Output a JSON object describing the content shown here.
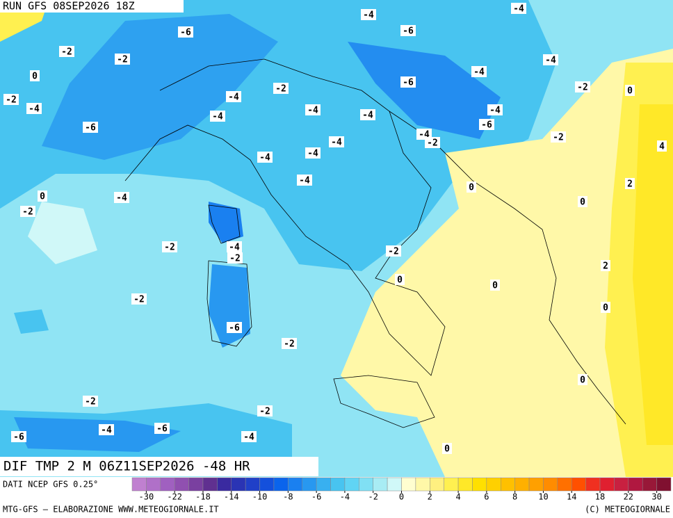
{
  "header": {
    "run": "RUN GFS 08SEP2026 18Z"
  },
  "title": "DIF TMP 2 M 06Z11SEP2026 -48 HR",
  "source": "DATI NCEP GFS 0.25°",
  "footer": {
    "left": "MTG-GFS — ELABORAZIONE WWW.METEOGIORNALE.IT",
    "right": "(C) METEOGIORNALE"
  },
  "contour_labels": [
    "-4",
    "-4",
    "-6",
    "-6",
    "-2",
    "-2",
    "-4",
    "0",
    "-4",
    "-6",
    "-2",
    "-2",
    "0",
    "-2",
    "-4",
    "-4",
    "-4",
    "-4",
    "-4",
    "-4",
    "-6",
    "-6",
    "-4",
    "-2",
    "-2",
    "-4",
    "-4",
    "-4",
    "4",
    "-4",
    "0",
    "2",
    "0",
    "-4",
    "0",
    "-2",
    "-2",
    "-4",
    "-2",
    "-2",
    "2",
    "0",
    "0",
    "-2",
    "0",
    "-6",
    "-2",
    "0",
    "-2",
    "-2",
    "-4",
    "-6",
    "-6",
    "-4",
    "0"
  ],
  "colorbar": {
    "ticks": [
      -30,
      -22,
      -18,
      -14,
      -10,
      -8,
      -6,
      -4,
      -2,
      0,
      2,
      4,
      6,
      8,
      10,
      14,
      18,
      22,
      30
    ],
    "colors": [
      "#c080d0",
      "#b070c8",
      "#a060c0",
      "#9050b0",
      "#7a40a0",
      "#603090",
      "#3a2aa0",
      "#2a34b4",
      "#2040c8",
      "#1450dc",
      "#0a64ec",
      "#1a80f0",
      "#2898f0",
      "#38b0f0",
      "#48c4f0",
      "#60d4f4",
      "#80e0f4",
      "#a8ecf4",
      "#d0f8f8",
      "#fffed0",
      "#fff8a8",
      "#fff080",
      "#fff050",
      "#ffe828",
      "#ffe000",
      "#ffd000",
      "#ffc000",
      "#ffb000",
      "#ffa000",
      "#ff8c00",
      "#ff7000",
      "#ff5000",
      "#f03020",
      "#e02030",
      "#c82040",
      "#b01840",
      "#981838",
      "#801030"
    ]
  }
}
